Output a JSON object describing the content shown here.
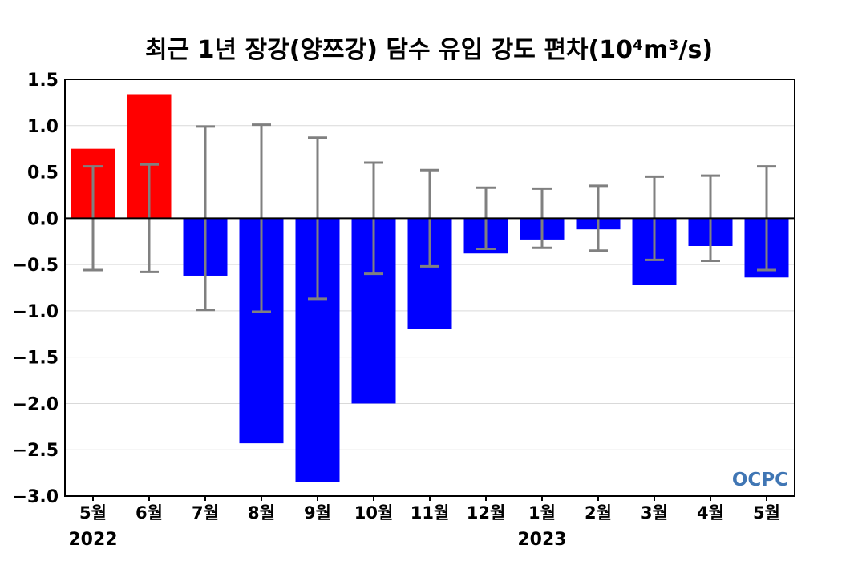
{
  "chart_data": {
    "type": "bar",
    "title": "최근 1년 장강(양쯔강) 담수 유입 강도 편차(10⁴m³/s)",
    "categories": [
      "5월",
      "6월",
      "7월",
      "8월",
      "9월",
      "10월",
      "11월",
      "12월",
      "1월",
      "2월",
      "3월",
      "4월",
      "5월"
    ],
    "values": [
      0.75,
      1.34,
      -0.62,
      -2.43,
      -2.85,
      -2.0,
      -1.2,
      -0.38,
      -0.23,
      -0.12,
      -0.72,
      -0.3,
      -0.64
    ],
    "error_upper": [
      0.56,
      0.58,
      0.99,
      1.01,
      0.87,
      0.6,
      0.52,
      0.33,
      0.32,
      0.35,
      0.45,
      0.46,
      0.56
    ],
    "error_lower": [
      -0.56,
      -0.58,
      -0.99,
      -1.01,
      -0.87,
      -0.6,
      -0.52,
      -0.33,
      -0.32,
      -0.35,
      -0.45,
      -0.46,
      -0.56
    ],
    "year_labels": [
      {
        "text": "2022",
        "category_index": 0
      },
      {
        "text": "2023",
        "category_index": 8
      }
    ],
    "ylim": [
      -3.0,
      1.5
    ],
    "yticks": [
      "1.5",
      "1.0",
      "0.5",
      "0.0",
      "−0.5",
      "−1.0",
      "−1.5",
      "−2.0",
      "−2.5",
      "−3.0"
    ],
    "xlabel": "",
    "ylabel": "",
    "grid": "horizontal",
    "colors": {
      "positive": "#ff0000",
      "negative": "#0000ff",
      "error_bar": "#808080",
      "grid": "#d9d9d9",
      "zero_line": "#000000"
    },
    "watermark": "OCPC"
  }
}
